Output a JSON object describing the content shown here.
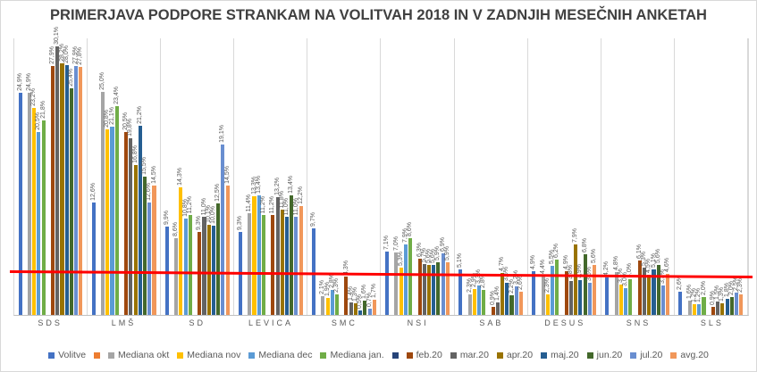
{
  "chart_data": {
    "type": "bar",
    "title": "PRIMERJAVA PODPORE STRANKAM NA VOLITVAH 2018 IN V ZADNJIH MESEČNIH ANKETAH",
    "categories": [
      "SDS",
      "LMŠ",
      "SD",
      "LEVICA",
      "SMC",
      "NSI",
      "SAB",
      "DESUS",
      "SNS",
      "SLS"
    ],
    "series": [
      {
        "name": "Volitve",
        "color": "#4472C4",
        "values": [
          24.9,
          12.6,
          9.9,
          9.3,
          9.7,
          7.1,
          5.1,
          4.9,
          4.2,
          2.6
        ]
      },
      {
        "name": "",
        "color": "#ED7D31",
        "values": null
      },
      {
        "name": "Mediana okt",
        "color": "#A5A5A5",
        "values": [
          24.9,
          25.0,
          8.6,
          11.4,
          2.1,
          7.0,
          2.3,
          4.4,
          4.8,
          1.6
        ]
      },
      {
        "name": "Mediana nov",
        "color": "#FFC000",
        "values": [
          23.2,
          20.8,
          14.3,
          13.3,
          1.9,
          5.3,
          2.9,
          2.3,
          3.4,
          1.2
        ]
      },
      {
        "name": "Mediana dec",
        "color": "#5B9BD5",
        "values": [
          20.5,
          21.1,
          10.8,
          13.4,
          2.8,
          7.9,
          3.3,
          5.5,
          3.0,
          1.2
        ]
      },
      {
        "name": "Mediana jan.",
        "color": "#70AD47",
        "values": [
          21.8,
          23.4,
          11.2,
          11.2,
          2.3,
          8.6,
          2.8,
          6.2,
          4.0,
          2.0
        ]
      },
      {
        "name": "",
        "color": "#264478",
        "values": null
      },
      {
        "name": "feb.20",
        "color": "#9E480E",
        "values": [
          27.9,
          20.5,
          9.3,
          11.2,
          4.3,
          6.3,
          0.9,
          4.9,
          6.1,
          0.9
        ]
      },
      {
        "name": "mar.20",
        "color": "#636363",
        "values": [
          30.1,
          19.8,
          11.0,
          13.2,
          1.4,
          5.7,
          1.4,
          3.8,
          5.3,
          1.5
        ]
      },
      {
        "name": "apr.20",
        "color": "#997300",
        "values": [
          28.2,
          16.8,
          10.1,
          11.8,
          1.3,
          5.6,
          4.7,
          7.9,
          4.5,
          1.3
        ]
      },
      {
        "name": "maj.20",
        "color": "#255E91",
        "values": [
          28.0,
          21.2,
          10.0,
          11.0,
          0.5,
          5.6,
          3.6,
          3.9,
          5.1,
          1.8
        ]
      },
      {
        "name": "jun.20",
        "color": "#43682B",
        "values": [
          25.4,
          15.5,
          12.5,
          13.4,
          1.6,
          5.9,
          2.2,
          6.8,
          5.6,
          2.0
        ]
      },
      {
        "name": "jul.20",
        "color": "#698ED0",
        "values": [
          27.9,
          12.6,
          19.1,
          11.0,
          0.7,
          6.9,
          3.2,
          3.6,
          3.3,
          2.5
        ]
      },
      {
        "name": "avg.20",
        "color": "#F1975A",
        "values": [
          27.8,
          14.5,
          14.5,
          12.2,
          1.7,
          5.9,
          2.6,
          5.6,
          4.6,
          2.3
        ]
      }
    ],
    "ylim": [
      0,
      31
    ],
    "y_axis_visible": false,
    "grid": "vertical-lines-between-categories",
    "legend_position": "bottom",
    "data_labels": "rotated-90-comma-decimal-percent",
    "red_line": {
      "color": "#FF0000",
      "approx_value": 4.5
    }
  },
  "style": {
    "title_color": "#404040",
    "label_color": "#595959",
    "grid_color": "#D9D9D9",
    "background": "#FFFFFF"
  }
}
